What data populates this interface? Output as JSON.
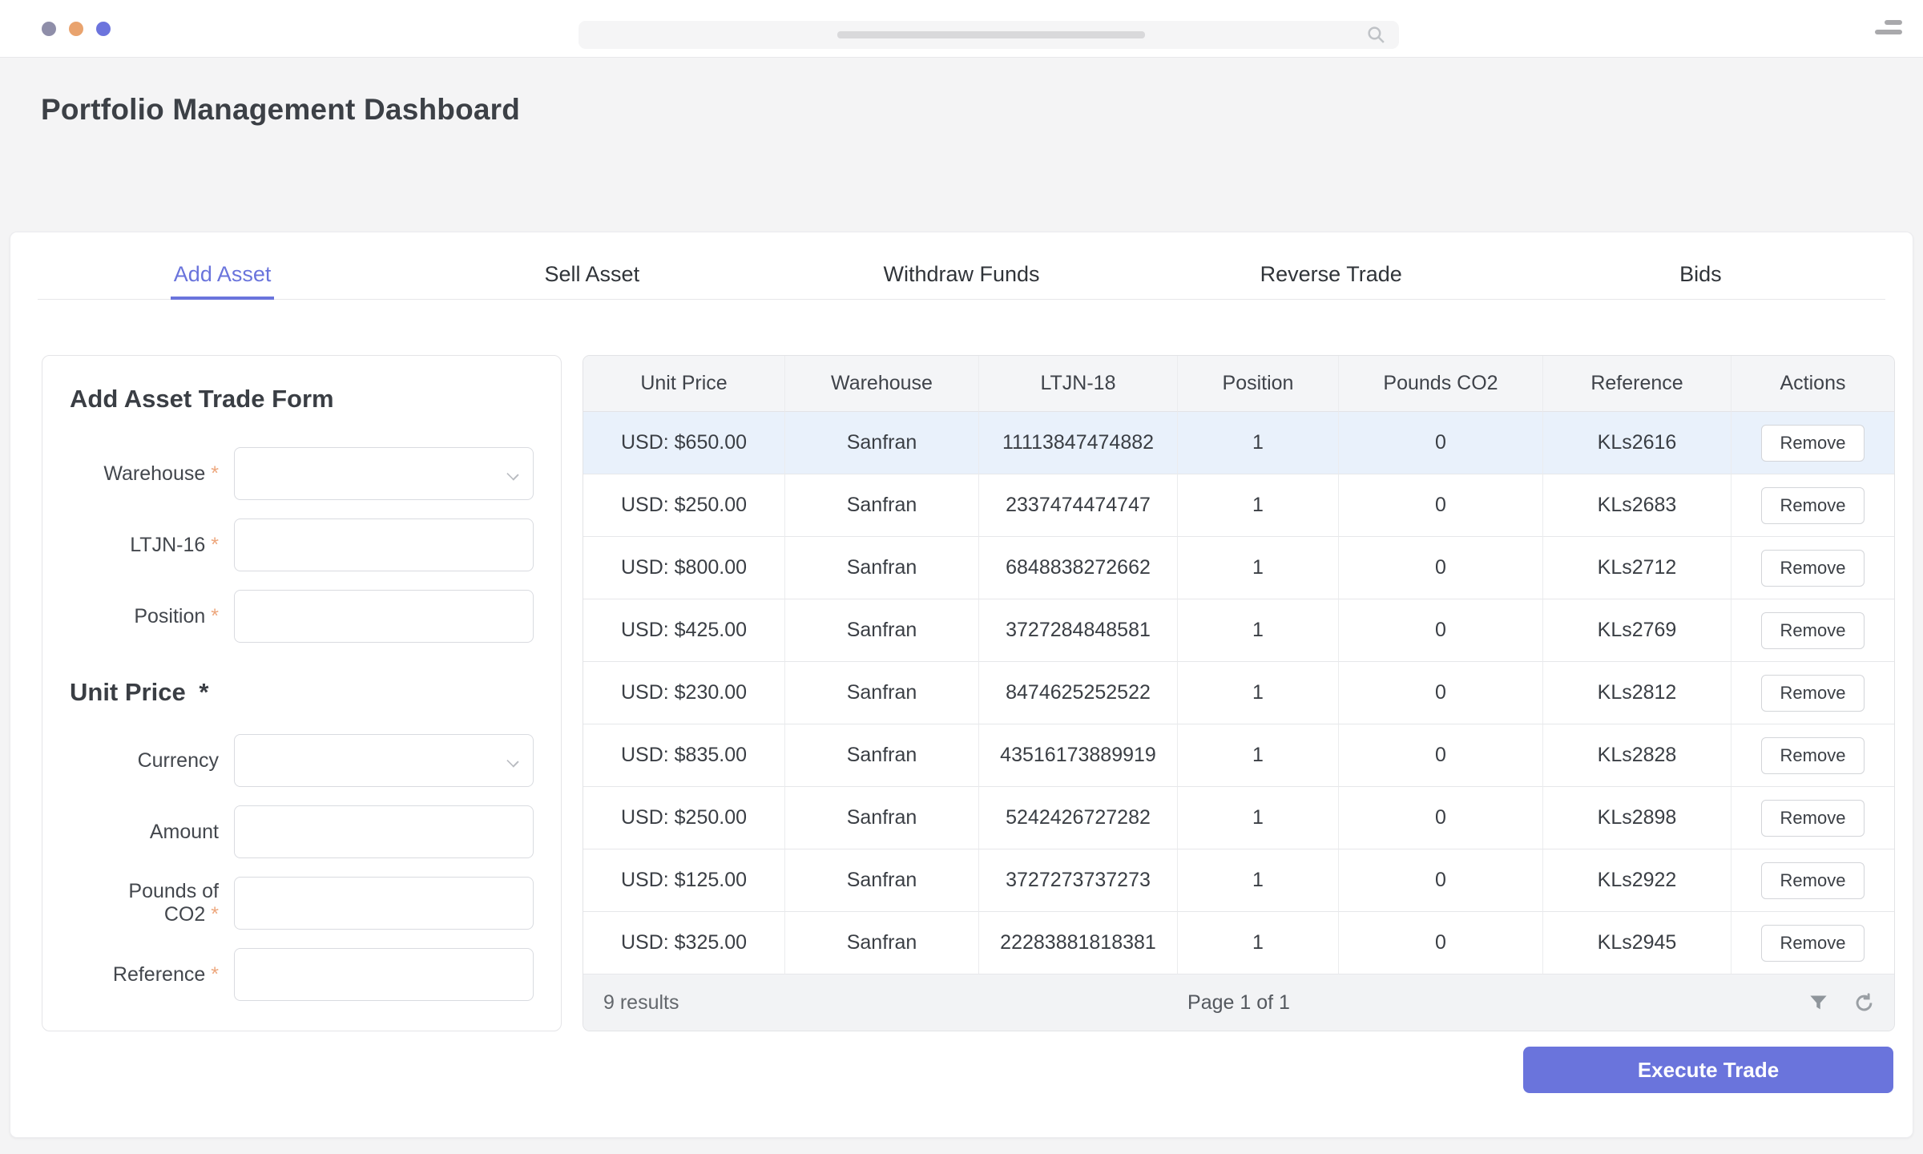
{
  "colors": {
    "accent": "#6a74dc",
    "required_star": "#eda77d",
    "row_highlight": "#e9f1fb",
    "dot_gray": "#8f8ea9",
    "dot_orange": "#e9a36e",
    "dot_indigo": "#6c74dd"
  },
  "page": {
    "title": "Portfolio Management Dashboard"
  },
  "tabs": [
    {
      "label": "Add Asset",
      "active": true
    },
    {
      "label": "Sell Asset",
      "active": false
    },
    {
      "label": "Withdraw Funds",
      "active": false
    },
    {
      "label": "Reverse Trade",
      "active": false
    },
    {
      "label": "Bids",
      "active": false
    }
  ],
  "form": {
    "title": "Add Asset Trade Form",
    "section_title": "Unit Price",
    "section_required": "*",
    "fields": [
      {
        "label": "Warehouse",
        "required": true,
        "type": "select",
        "value": ""
      },
      {
        "label": "LTJN-16",
        "required": true,
        "type": "text",
        "value": ""
      },
      {
        "label": "Position",
        "required": true,
        "type": "text",
        "value": ""
      },
      {
        "section_break": true
      },
      {
        "label": "Currency",
        "required": false,
        "type": "select",
        "value": ""
      },
      {
        "label": "Amount",
        "required": false,
        "type": "text",
        "value": ""
      },
      {
        "label": "Pounds of CO2",
        "required": true,
        "type": "text",
        "value": ""
      },
      {
        "label": "Reference",
        "required": true,
        "type": "text",
        "value": ""
      }
    ],
    "submit_label": "Execute Trade"
  },
  "table": {
    "columns": [
      "Unit Price",
      "Warehouse",
      "LTJN-18",
      "Position",
      "Pounds CO2",
      "Reference",
      "Actions"
    ],
    "action_label": "Remove",
    "highlighted_row": 0,
    "rows": [
      [
        "USD: $650.00",
        "Sanfran",
        "11113847474882",
        "1",
        "0",
        "KLs2616"
      ],
      [
        "USD: $250.00",
        "Sanfran",
        "2337474474747",
        "1",
        "0",
        "KLs2683"
      ],
      [
        "USD: $800.00",
        "Sanfran",
        "6848838272662",
        "1",
        "0",
        "KLs2712"
      ],
      [
        "USD: $425.00",
        "Sanfran",
        "3727284848581",
        "1",
        "0",
        "KLs2769"
      ],
      [
        "USD: $230.00",
        "Sanfran",
        "8474625252522",
        "1",
        "0",
        "KLs2812"
      ],
      [
        "USD: $835.00",
        "Sanfran",
        "43516173889919",
        "1",
        "0",
        "KLs2828"
      ],
      [
        "USD: $250.00",
        "Sanfran",
        "5242426727282",
        "1",
        "0",
        "KLs2898"
      ],
      [
        "USD: $125.00",
        "Sanfran",
        "3727273737273",
        "1",
        "0",
        "KLs2922"
      ],
      [
        "USD: $325.00",
        "Sanfran",
        "22283881818381",
        "1",
        "0",
        "KLs2945"
      ]
    ],
    "footer": {
      "results": "9 results",
      "page": "Page 1 of 1"
    }
  }
}
